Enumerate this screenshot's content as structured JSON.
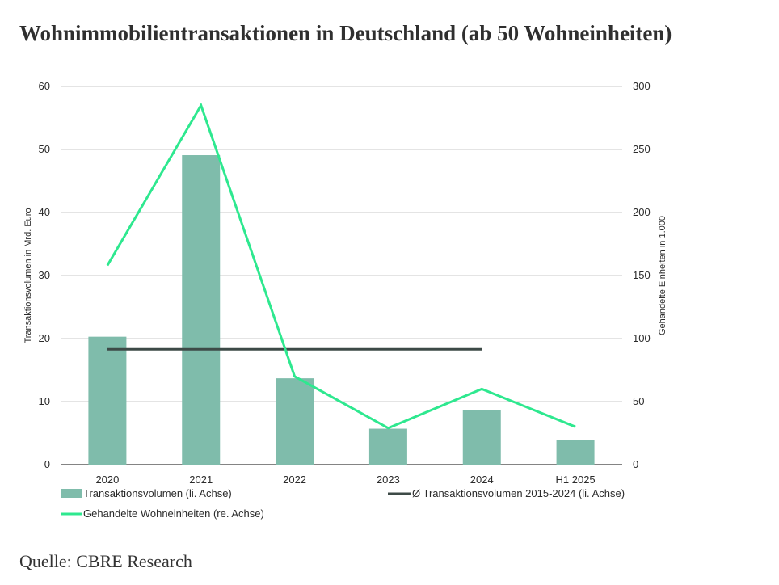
{
  "title": "Wohnimmobilientransaktionen in Deutschland (ab 50 Wohneinheiten)",
  "source": "Quelle: CBRE Research",
  "chart_data": {
    "type": "bar",
    "categories": [
      "2020",
      "2021",
      "2022",
      "2023",
      "2024",
      "H1 2025"
    ],
    "ylabel": "Transaktionsvolumen in Mrd. Euro",
    "y2label": "Gehandelte Einheiten in 1.000",
    "ylim": [
      0,
      60
    ],
    "y2lim": [
      0,
      300
    ],
    "yticks": [
      "0",
      "10",
      "20",
      "30",
      "40",
      "50",
      "60"
    ],
    "y2ticks": [
      "0",
      "50",
      "100",
      "150",
      "200",
      "250",
      "300"
    ],
    "grid": true,
    "legend_position": "bottom",
    "series": [
      {
        "name": "Transaktionsvolumen (li. Achse)",
        "type": "bar",
        "axis": "left",
        "color": "#7fbcab",
        "values": [
          20.3,
          49.1,
          13.7,
          5.7,
          8.7,
          3.9
        ]
      },
      {
        "name": "Ø Transaktionsvolumen 2015-2024 (li. Achse)",
        "type": "line",
        "axis": "left",
        "color": "#3d4a47",
        "values": [
          18.3,
          18.3,
          18.3,
          18.3,
          18.3,
          null
        ]
      },
      {
        "name": "Gehandelte Wohneinheiten (re. Achse)",
        "type": "line",
        "axis": "right",
        "color": "#2ee88f",
        "values": [
          158,
          285,
          70,
          29,
          60,
          30
        ]
      }
    ]
  }
}
